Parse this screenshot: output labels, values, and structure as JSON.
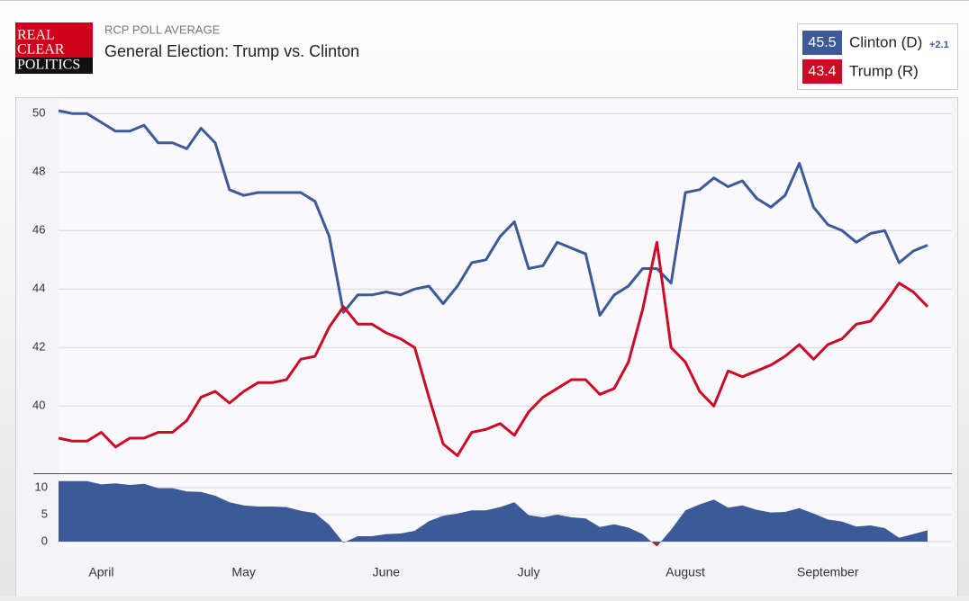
{
  "header": {
    "logo": [
      "REAL",
      "CLEAR",
      "POLITICS"
    ]
  },
  "chart_data": [
    {
      "type": "line",
      "subtitle": "RCP POLL AVERAGE",
      "title": "General Election: Trump vs. Clinton",
      "categories": [
        null,
        null,
        null,
        "April",
        null,
        null,
        null,
        null,
        null,
        null,
        null,
        null,
        null,
        "May",
        null,
        null,
        null,
        null,
        null,
        null,
        null,
        null,
        null,
        "June",
        null,
        null,
        null,
        null,
        null,
        null,
        null,
        null,
        null,
        "July",
        null,
        null,
        null,
        null,
        null,
        null,
        null,
        null,
        null,
        null,
        "August",
        null,
        null,
        null,
        null,
        null,
        null,
        null,
        null,
        null,
        "September",
        null,
        null,
        null,
        null,
        null,
        null,
        null
      ],
      "series": [
        {
          "name": "Clinton (D)",
          "color": "#3d5a98",
          "latest": 45.5,
          "change": {
            "value": 2.1,
            "label": "+2.1"
          },
          "values": [
            50.1,
            50.0,
            50.0,
            49.7,
            49.4,
            49.4,
            49.6,
            49.0,
            49.0,
            48.8,
            49.5,
            49.0,
            47.4,
            47.2,
            47.3,
            47.3,
            47.3,
            47.3,
            47.0,
            45.8,
            43.2,
            43.8,
            43.8,
            43.9,
            43.8,
            44.0,
            44.1,
            43.5,
            44.1,
            44.9,
            45.0,
            45.8,
            46.3,
            44.7,
            44.8,
            45.6,
            45.4,
            45.2,
            43.1,
            43.8,
            44.1,
            44.7,
            44.7,
            44.2,
            47.3,
            47.4,
            47.8,
            47.5,
            47.7,
            47.1,
            46.8,
            47.2,
            48.3,
            46.8,
            46.2,
            46.0,
            45.6,
            45.9,
            46.0,
            44.9,
            45.3,
            45.5
          ]
        },
        {
          "name": "Trump (R)",
          "color": "#cc0a25",
          "latest": 43.4,
          "values": [
            38.9,
            38.8,
            38.8,
            39.1,
            38.6,
            38.9,
            38.9,
            39.1,
            39.1,
            39.5,
            40.3,
            40.5,
            40.1,
            40.5,
            40.8,
            40.8,
            40.9,
            41.6,
            41.7,
            42.7,
            43.4,
            42.8,
            42.8,
            42.5,
            42.3,
            42.0,
            40.3,
            38.7,
            38.3,
            39.1,
            39.2,
            39.4,
            39.0,
            39.8,
            40.3,
            40.6,
            40.9,
            40.9,
            40.4,
            40.6,
            41.5,
            43.3,
            45.6,
            42.0,
            41.5,
            40.5,
            40.0,
            41.2,
            41.0,
            41.2,
            41.4,
            41.7,
            42.1,
            41.6,
            42.1,
            42.3,
            42.8,
            42.9,
            43.5,
            44.2,
            43.9,
            43.4
          ]
        }
      ],
      "ylim": [
        37.7,
        50.5
      ],
      "yticks": [
        40,
        42,
        44,
        46,
        48,
        50
      ],
      "grid": true
    },
    {
      "type": "area",
      "color": "#3d5a98",
      "negative_color": "#cc0a25",
      "values": [
        11.2,
        11.2,
        11.2,
        10.6,
        10.8,
        10.5,
        10.7,
        9.9,
        9.9,
        9.3,
        9.2,
        8.5,
        7.3,
        6.7,
        6.5,
        6.5,
        6.4,
        5.7,
        5.3,
        3.1,
        -0.2,
        1.0,
        1.0,
        1.4,
        1.5,
        2.0,
        3.8,
        4.8,
        5.2,
        5.8,
        5.8,
        6.4,
        7.3,
        4.9,
        4.5,
        5.0,
        4.5,
        4.3,
        2.7,
        3.2,
        2.6,
        1.4,
        -0.9,
        2.2,
        5.8,
        6.9,
        7.8,
        6.3,
        6.7,
        5.9,
        5.4,
        5.5,
        6.2,
        5.2,
        4.1,
        3.7,
        2.8,
        3.0,
        2.5,
        0.7,
        1.4,
        2.1
      ],
      "ylim": [
        -1.0,
        12.5
      ],
      "yticks": [
        0,
        5,
        10
      ],
      "grid": true
    }
  ]
}
